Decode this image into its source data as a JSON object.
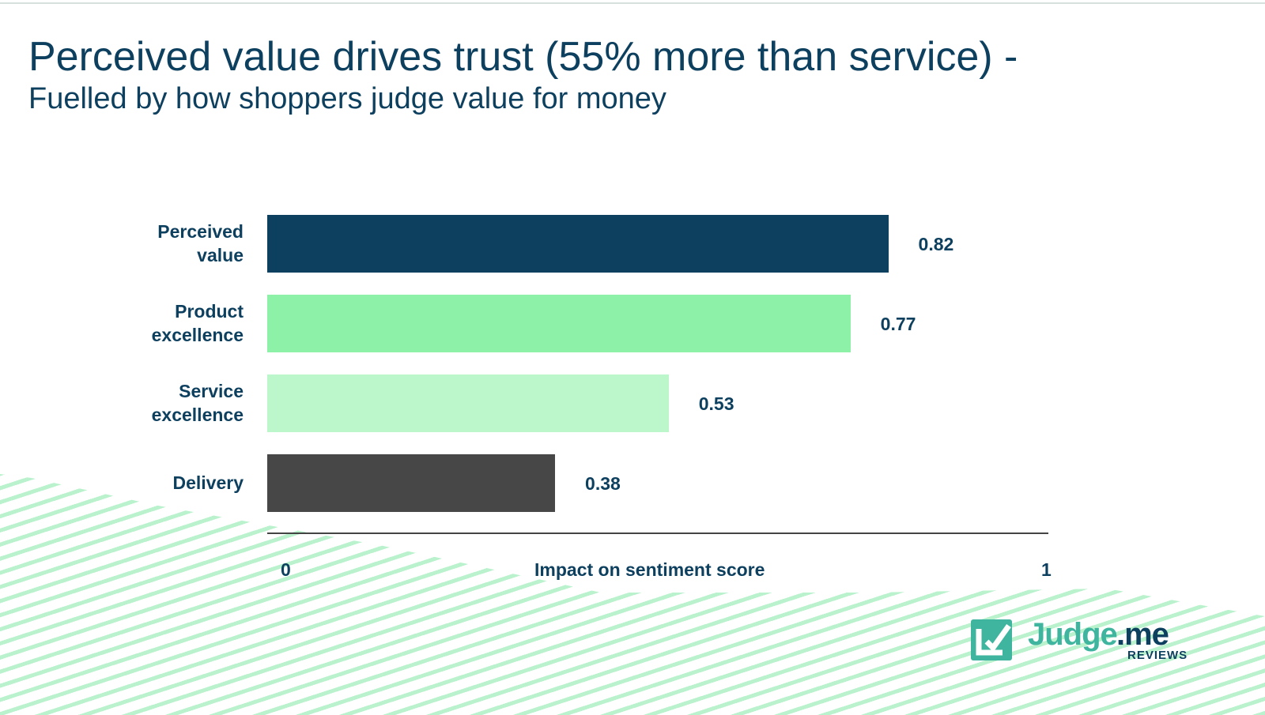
{
  "title": "Perceived value drives trust (55% more than service) -",
  "subtitle": "Fuelled by how shoppers judge value for money",
  "chart_data": {
    "type": "bar",
    "orientation": "horizontal",
    "categories": [
      "Perceived\nvalue",
      "Product\nexcellence",
      "Service\nexcellence",
      "Delivery"
    ],
    "values": [
      0.82,
      0.77,
      0.53,
      0.38
    ],
    "value_labels": [
      "0.82",
      "0.77",
      "0.53",
      "0.38"
    ],
    "colors": [
      "#0d3f5e",
      "#8df2a7",
      "#bbf7cb",
      "#464746"
    ],
    "xlabel": "Impact on sentiment score",
    "xlim": [
      0,
      1
    ],
    "tick_labels": [
      "0",
      "1"
    ],
    "grid": false,
    "legend": "none"
  },
  "logo": {
    "brand": "Judge.me",
    "tagline": "REVIEWS",
    "colors": {
      "teal": "#3fb59f",
      "navy": "#0d3f5e"
    }
  }
}
